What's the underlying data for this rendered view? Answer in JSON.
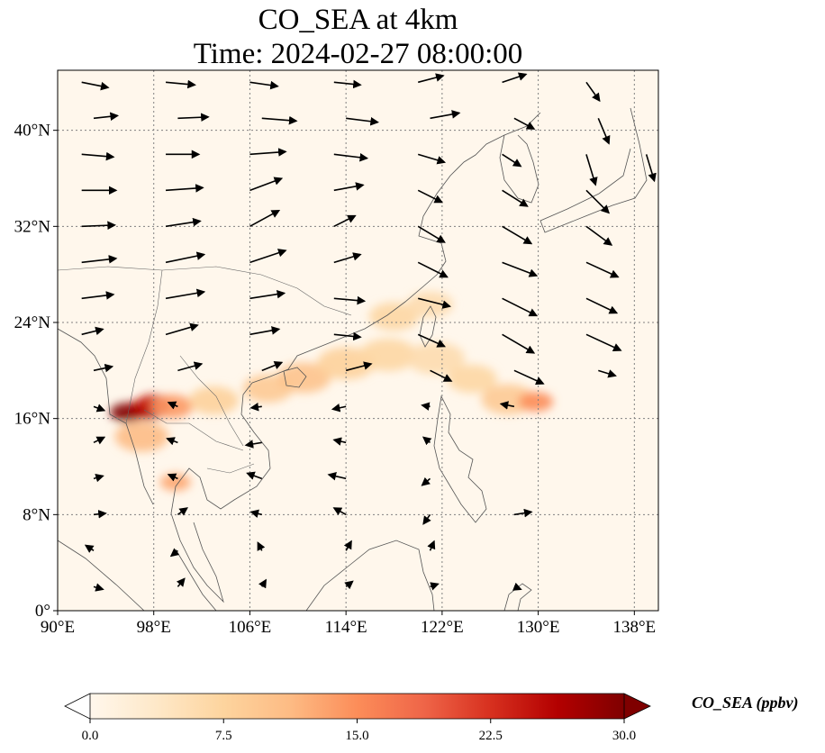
{
  "title": {
    "line1": "CO_SEA at 4km",
    "line2": "Time: 2024-02-27 08:00:00"
  },
  "map": {
    "extent": {
      "lon": [
        90,
        140
      ],
      "lat": [
        0,
        45
      ]
    },
    "lon_ticks": [
      {
        "value": 90,
        "label": "90°E"
      },
      {
        "value": 98,
        "label": "98°E"
      },
      {
        "value": 106,
        "label": "106°E"
      },
      {
        "value": 114,
        "label": "114°E"
      },
      {
        "value": 122,
        "label": "122°E"
      },
      {
        "value": 130,
        "label": "130°E"
      },
      {
        "value": 138,
        "label": "138°E"
      }
    ],
    "lat_ticks": [
      {
        "value": 0,
        "label": "0°"
      },
      {
        "value": 8,
        "label": "8°N"
      },
      {
        "value": 16,
        "label": "16°N"
      },
      {
        "value": 24,
        "label": "24°N"
      },
      {
        "value": 32,
        "label": "32°N"
      },
      {
        "value": 40,
        "label": "40°N"
      }
    ],
    "gridlines": true,
    "plumes": [
      {
        "lon": 95.8,
        "lat": 16.5,
        "r": 0.9,
        "value": 30
      },
      {
        "lon": 97.5,
        "lat": 16.8,
        "r": 1.0,
        "value": 27
      },
      {
        "lon": 98.0,
        "lat": 17.2,
        "r": 0.9,
        "value": 24
      },
      {
        "lon": 99.5,
        "lat": 17.0,
        "r": 1.1,
        "value": 14
      },
      {
        "lon": 97.0,
        "lat": 14.5,
        "r": 1.4,
        "value": 11
      },
      {
        "lon": 99.8,
        "lat": 10.7,
        "r": 0.8,
        "value": 13
      },
      {
        "lon": 103.0,
        "lat": 17.5,
        "r": 1.3,
        "value": 8
      },
      {
        "lon": 107.5,
        "lat": 18.5,
        "r": 1.3,
        "value": 9
      },
      {
        "lon": 110.5,
        "lat": 19.4,
        "r": 1.4,
        "value": 10
      },
      {
        "lon": 114.0,
        "lat": 20.6,
        "r": 1.5,
        "value": 8
      },
      {
        "lon": 117.5,
        "lat": 21.3,
        "r": 1.5,
        "value": 7
      },
      {
        "lon": 121.5,
        "lat": 21.0,
        "r": 1.5,
        "value": 6
      },
      {
        "lon": 118.0,
        "lat": 24.5,
        "r": 1.3,
        "value": 7
      },
      {
        "lon": 121.0,
        "lat": 25.5,
        "r": 1.2,
        "value": 6
      },
      {
        "lon": 124.5,
        "lat": 19.3,
        "r": 1.3,
        "value": 7
      },
      {
        "lon": 127.5,
        "lat": 17.6,
        "r": 1.4,
        "value": 9
      },
      {
        "lon": 129.8,
        "lat": 17.4,
        "r": 0.9,
        "value": 15
      }
    ],
    "wind_vectors": [
      {
        "lon": 92,
        "lat": 44,
        "u": 2.0,
        "v": -0.4
      },
      {
        "lon": 99,
        "lat": 44,
        "u": 2.2,
        "v": -0.2
      },
      {
        "lon": 106,
        "lat": 44,
        "u": 2.1,
        "v": -0.3
      },
      {
        "lon": 113,
        "lat": 44,
        "u": 2.0,
        "v": -0.2
      },
      {
        "lon": 120,
        "lat": 44,
        "u": 1.9,
        "v": 0.5
      },
      {
        "lon": 127,
        "lat": 44,
        "u": 1.8,
        "v": 0.6
      },
      {
        "lon": 134,
        "lat": 44,
        "u": 1.0,
        "v": -1.4
      },
      {
        "lon": 93,
        "lat": 41,
        "u": 1.8,
        "v": 0.2
      },
      {
        "lon": 100,
        "lat": 41,
        "u": 2.3,
        "v": 0.1
      },
      {
        "lon": 107,
        "lat": 41,
        "u": 2.6,
        "v": -0.2
      },
      {
        "lon": 114,
        "lat": 41,
        "u": 2.4,
        "v": -0.3
      },
      {
        "lon": 121,
        "lat": 41,
        "u": 2.2,
        "v": 0.4
      },
      {
        "lon": 128,
        "lat": 41,
        "u": 1.5,
        "v": -0.8
      },
      {
        "lon": 135,
        "lat": 41,
        "u": 0.8,
        "v": -1.9
      },
      {
        "lon": 92,
        "lat": 38,
        "u": 2.4,
        "v": -0.2
      },
      {
        "lon": 99,
        "lat": 38,
        "u": 2.5,
        "v": 0.0
      },
      {
        "lon": 106,
        "lat": 38,
        "u": 2.7,
        "v": 0.2
      },
      {
        "lon": 113,
        "lat": 38,
        "u": 2.5,
        "v": -0.3
      },
      {
        "lon": 120,
        "lat": 38,
        "u": 2.0,
        "v": -0.6
      },
      {
        "lon": 127,
        "lat": 38,
        "u": 1.4,
        "v": -0.9
      },
      {
        "lon": 134,
        "lat": 38,
        "u": 0.7,
        "v": -2.3
      },
      {
        "lon": 139,
        "lat": 38,
        "u": 0.6,
        "v": -2.0
      },
      {
        "lon": 92,
        "lat": 35,
        "u": 2.6,
        "v": 0.0
      },
      {
        "lon": 99,
        "lat": 35,
        "u": 2.8,
        "v": 0.2
      },
      {
        "lon": 106,
        "lat": 35,
        "u": 2.4,
        "v": 0.9
      },
      {
        "lon": 113,
        "lat": 35,
        "u": 2.2,
        "v": 0.4
      },
      {
        "lon": 120,
        "lat": 35,
        "u": 1.8,
        "v": -0.9
      },
      {
        "lon": 127,
        "lat": 35,
        "u": 1.9,
        "v": -1.2
      },
      {
        "lon": 134,
        "lat": 35,
        "u": 1.7,
        "v": -1.7
      },
      {
        "lon": 92,
        "lat": 32,
        "u": 2.5,
        "v": 0.1
      },
      {
        "lon": 99,
        "lat": 32,
        "u": 2.6,
        "v": 0.4
      },
      {
        "lon": 106,
        "lat": 32,
        "u": 2.2,
        "v": 1.2
      },
      {
        "lon": 113,
        "lat": 32,
        "u": 1.6,
        "v": 0.8
      },
      {
        "lon": 120,
        "lat": 32,
        "u": 2.0,
        "v": -1.2
      },
      {
        "lon": 127,
        "lat": 32,
        "u": 2.2,
        "v": -1.3
      },
      {
        "lon": 134,
        "lat": 32,
        "u": 1.9,
        "v": -1.4
      },
      {
        "lon": 92,
        "lat": 29,
        "u": 2.6,
        "v": 0.3
      },
      {
        "lon": 99,
        "lat": 29,
        "u": 2.9,
        "v": 0.6
      },
      {
        "lon": 106,
        "lat": 29,
        "u": 2.7,
        "v": 0.9
      },
      {
        "lon": 113,
        "lat": 29,
        "u": 2.0,
        "v": 0.6
      },
      {
        "lon": 120,
        "lat": 29,
        "u": 2.2,
        "v": -1.1
      },
      {
        "lon": 127,
        "lat": 29,
        "u": 2.6,
        "v": -1.0
      },
      {
        "lon": 134,
        "lat": 29,
        "u": 2.4,
        "v": -1.1
      },
      {
        "lon": 92,
        "lat": 26,
        "u": 2.4,
        "v": 0.3
      },
      {
        "lon": 99,
        "lat": 26,
        "u": 2.9,
        "v": 0.5
      },
      {
        "lon": 106,
        "lat": 26,
        "u": 2.6,
        "v": 0.4
      },
      {
        "lon": 113,
        "lat": 26,
        "u": 2.3,
        "v": -0.2
      },
      {
        "lon": 120,
        "lat": 26,
        "u": 2.4,
        "v": -0.6
      },
      {
        "lon": 127,
        "lat": 26,
        "u": 2.6,
        "v": -1.3
      },
      {
        "lon": 134,
        "lat": 26,
        "u": 2.3,
        "v": -1.1
      },
      {
        "lon": 92,
        "lat": 23,
        "u": 1.6,
        "v": 0.4
      },
      {
        "lon": 99,
        "lat": 23,
        "u": 2.4,
        "v": 0.7
      },
      {
        "lon": 106,
        "lat": 23,
        "u": 2.2,
        "v": 0.4
      },
      {
        "lon": 113,
        "lat": 23,
        "u": 2.0,
        "v": -0.2
      },
      {
        "lon": 120,
        "lat": 23,
        "u": 2.0,
        "v": -0.9
      },
      {
        "lon": 127,
        "lat": 23,
        "u": 2.4,
        "v": -1.4
      },
      {
        "lon": 134,
        "lat": 23,
        "u": 2.6,
        "v": -1.2
      },
      {
        "lon": 93,
        "lat": 20,
        "u": 1.4,
        "v": 0.3
      },
      {
        "lon": 100,
        "lat": 20,
        "u": 1.8,
        "v": 0.5
      },
      {
        "lon": 107,
        "lat": 20,
        "u": 1.5,
        "v": 0.6
      },
      {
        "lon": 114,
        "lat": 20,
        "u": 1.9,
        "v": 0.5
      },
      {
        "lon": 121,
        "lat": 20,
        "u": 1.6,
        "v": -0.8
      },
      {
        "lon": 128,
        "lat": 20,
        "u": 2.2,
        "v": -1.0
      },
      {
        "lon": 135,
        "lat": 20,
        "u": 1.3,
        "v": -0.4
      },
      {
        "lon": 93,
        "lat": 17,
        "u": 0.8,
        "v": -0.3
      },
      {
        "lon": 100,
        "lat": 17,
        "u": -0.7,
        "v": 0.3
      },
      {
        "lon": 107,
        "lat": 17,
        "u": -0.8,
        "v": -0.1
      },
      {
        "lon": 114,
        "lat": 17,
        "u": -1.0,
        "v": -0.2
      },
      {
        "lon": 121,
        "lat": 17,
        "u": -0.6,
        "v": 0.1
      },
      {
        "lon": 128,
        "lat": 17,
        "u": -1.0,
        "v": 0.2
      },
      {
        "lon": 93,
        "lat": 14,
        "u": 0.8,
        "v": 0.4
      },
      {
        "lon": 100,
        "lat": 14,
        "u": -0.8,
        "v": 0.3
      },
      {
        "lon": 107,
        "lat": 14,
        "u": -1.2,
        "v": -0.2
      },
      {
        "lon": 114,
        "lat": 14,
        "u": -0.9,
        "v": 0.2
      },
      {
        "lon": 121,
        "lat": 14,
        "u": -0.5,
        "v": 0.4
      },
      {
        "lon": 93,
        "lat": 11,
        "u": 0.7,
        "v": 0.2
      },
      {
        "lon": 100,
        "lat": 11,
        "u": -0.7,
        "v": 0.3
      },
      {
        "lon": 107,
        "lat": 11,
        "u": -1.1,
        "v": 0.4
      },
      {
        "lon": 114,
        "lat": 11,
        "u": -1.3,
        "v": 0.3
      },
      {
        "lon": 121,
        "lat": 11,
        "u": -0.6,
        "v": -0.5
      },
      {
        "lon": 93,
        "lat": 8,
        "u": 0.9,
        "v": 0.1
      },
      {
        "lon": 100,
        "lat": 8,
        "u": 0.7,
        "v": 0.5
      },
      {
        "lon": 107,
        "lat": 8,
        "u": -0.8,
        "v": 0.2
      },
      {
        "lon": 114,
        "lat": 8,
        "u": -0.9,
        "v": 0.5
      },
      {
        "lon": 121,
        "lat": 8,
        "u": -0.5,
        "v": -0.7
      },
      {
        "lon": 128,
        "lat": 8,
        "u": 1.3,
        "v": 0.2
      },
      {
        "lon": 93,
        "lat": 5,
        "u": -0.6,
        "v": 0.4
      },
      {
        "lon": 100,
        "lat": 5,
        "u": -0.5,
        "v": -0.4
      },
      {
        "lon": 107,
        "lat": 5,
        "u": -0.3,
        "v": 0.6
      },
      {
        "lon": 114,
        "lat": 5,
        "u": 0.4,
        "v": 0.7
      },
      {
        "lon": 121,
        "lat": 5,
        "u": 0.3,
        "v": 0.7
      },
      {
        "lon": 93,
        "lat": 2,
        "u": 0.7,
        "v": -0.2
      },
      {
        "lon": 100,
        "lat": 2,
        "u": 0.5,
        "v": 0.6
      },
      {
        "lon": 107,
        "lat": 2,
        "u": 0.3,
        "v": 0.5
      },
      {
        "lon": 114,
        "lat": 2,
        "u": 0.5,
        "v": 0.4
      },
      {
        "lon": 121,
        "lat": 2,
        "u": 0.6,
        "v": 0.2
      },
      {
        "lon": 128,
        "lat": 2,
        "u": 0.5,
        "v": -0.2
      }
    ]
  },
  "colorbar": {
    "label": "CO_SEA (ppbv)",
    "ticks": [
      "0.0",
      "7.5",
      "15.0",
      "22.5",
      "30.0"
    ],
    "range": [
      0,
      30
    ],
    "colors": [
      "#fff7ec",
      "#fee8c8",
      "#fdd49e",
      "#fdbb84",
      "#fc8d59",
      "#ef6548",
      "#d7301f",
      "#b30000",
      "#7f0000"
    ],
    "under": "#ffffff",
    "over": "#7f0000"
  },
  "colors": {
    "land_outline": "#555555",
    "grid": "#808080",
    "vector": "#000000"
  }
}
